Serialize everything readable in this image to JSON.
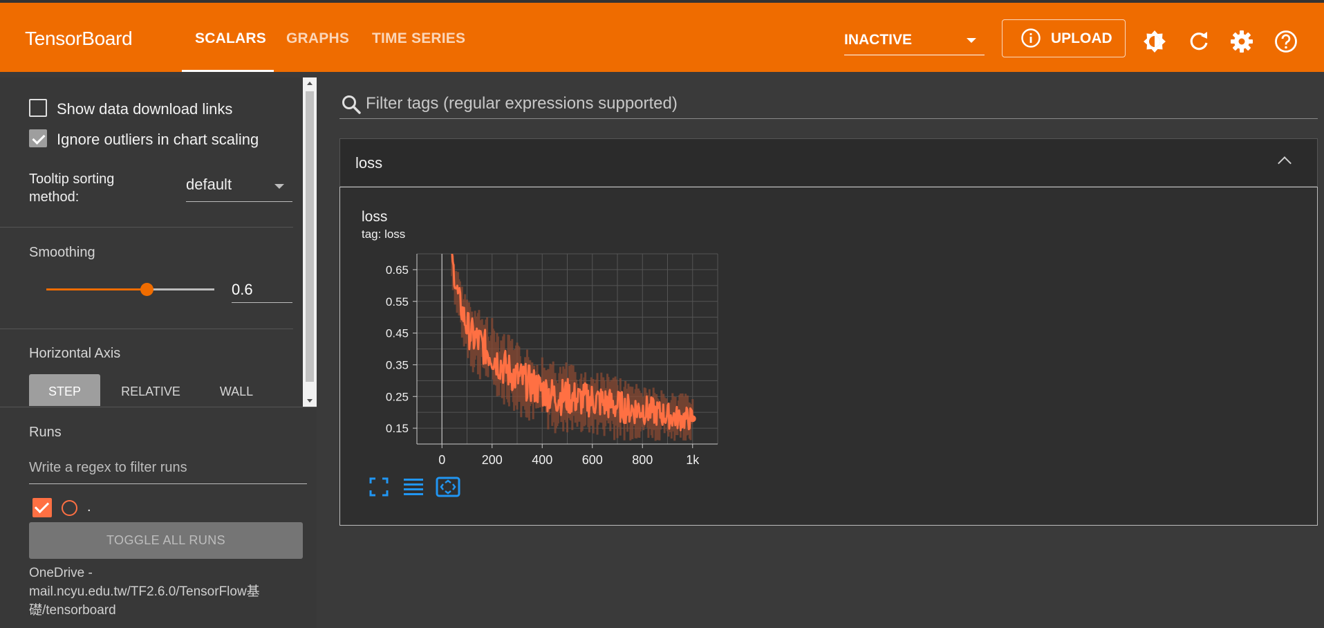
{
  "header": {
    "brand": "TensorBoard",
    "tabs": [
      {
        "label": "SCALARS",
        "active": true
      },
      {
        "label": "GRAPHS",
        "active": false
      },
      {
        "label": "TIME SERIES",
        "active": false
      }
    ],
    "run_state": "INACTIVE",
    "upload_label": "UPLOAD",
    "icons": [
      "info-icon",
      "theme-toggle-icon",
      "refresh-icon",
      "settings-icon",
      "help-icon"
    ],
    "accent_color": "#ef6c00"
  },
  "sidebar": {
    "show_download_links": {
      "label": "Show data download links",
      "checked": false
    },
    "ignore_outliers": {
      "label": "Ignore outliers in chart scaling",
      "checked": true
    },
    "tooltip_sorting": {
      "label": "Tooltip sorting method:",
      "value": "default"
    },
    "smoothing": {
      "title": "Smoothing",
      "value": "0.6",
      "level": 0.6
    },
    "horizontal_axis": {
      "title": "Horizontal Axis",
      "options": [
        {
          "label": "STEP",
          "active": true
        },
        {
          "label": "RELATIVE",
          "active": false
        },
        {
          "label": "WALL",
          "active": false
        }
      ]
    },
    "runs": {
      "title": "Runs",
      "filter_placeholder": "Write a regex to filter runs",
      "items": [
        {
          "name": ".",
          "checked": true,
          "color": "#ff7043"
        }
      ],
      "toggle_all_label": "TOGGLE ALL RUNS",
      "path": "OneDrive - mail.ncyu.edu.tw/TF2.6.0/TensorFlow基礎/tensorboard"
    }
  },
  "main": {
    "filter_placeholder": "Filter tags (regular expressions supported)",
    "card": {
      "group_title": "loss",
      "chart_title": "loss",
      "chart_tag": "tag: loss",
      "tool_icons": [
        "fullscreen-icon",
        "toggle-y-log-icon",
        "fit-domain-icon"
      ]
    }
  },
  "chart_data": {
    "type": "line",
    "title": "loss",
    "subtitle": "tag: loss",
    "xlabel": "",
    "ylabel": "",
    "xlim": [
      -100,
      1100
    ],
    "ylim": [
      0.1,
      0.7
    ],
    "x_ticks": [
      "0",
      "200",
      "400",
      "600",
      "800",
      "1k"
    ],
    "x_tick_values": [
      0,
      200,
      400,
      600,
      800,
      1000
    ],
    "y_ticks": [
      "0.15",
      "0.25",
      "0.35",
      "0.45",
      "0.55",
      "0.65"
    ],
    "y_tick_values": [
      0.15,
      0.25,
      0.35,
      0.45,
      0.55,
      0.65
    ],
    "grid": true,
    "series": [
      {
        "name": ".",
        "color": "#ff7043",
        "x": [
          40,
          60,
          80,
          100,
          120,
          150,
          200,
          250,
          300,
          350,
          400,
          450,
          500,
          550,
          600,
          650,
          700,
          750,
          800,
          850,
          900,
          950,
          1000
        ],
        "y": [
          0.68,
          0.58,
          0.52,
          0.47,
          0.44,
          0.42,
          0.38,
          0.34,
          0.31,
          0.29,
          0.27,
          0.25,
          0.25,
          0.24,
          0.24,
          0.23,
          0.22,
          0.21,
          0.21,
          0.2,
          0.19,
          0.18,
          0.18
        ],
        "y_high": [
          0.72,
          0.66,
          0.6,
          0.58,
          0.55,
          0.53,
          0.5,
          0.46,
          0.42,
          0.4,
          0.38,
          0.36,
          0.36,
          0.34,
          0.34,
          0.33,
          0.31,
          0.3,
          0.3,
          0.28,
          0.27,
          0.26,
          0.26
        ],
        "y_low": [
          0.6,
          0.49,
          0.42,
          0.36,
          0.32,
          0.3,
          0.27,
          0.22,
          0.19,
          0.17,
          0.15,
          0.13,
          0.13,
          0.13,
          0.12,
          0.12,
          0.11,
          0.11,
          0.11,
          0.11,
          0.11,
          0.11,
          0.11
        ]
      }
    ]
  }
}
